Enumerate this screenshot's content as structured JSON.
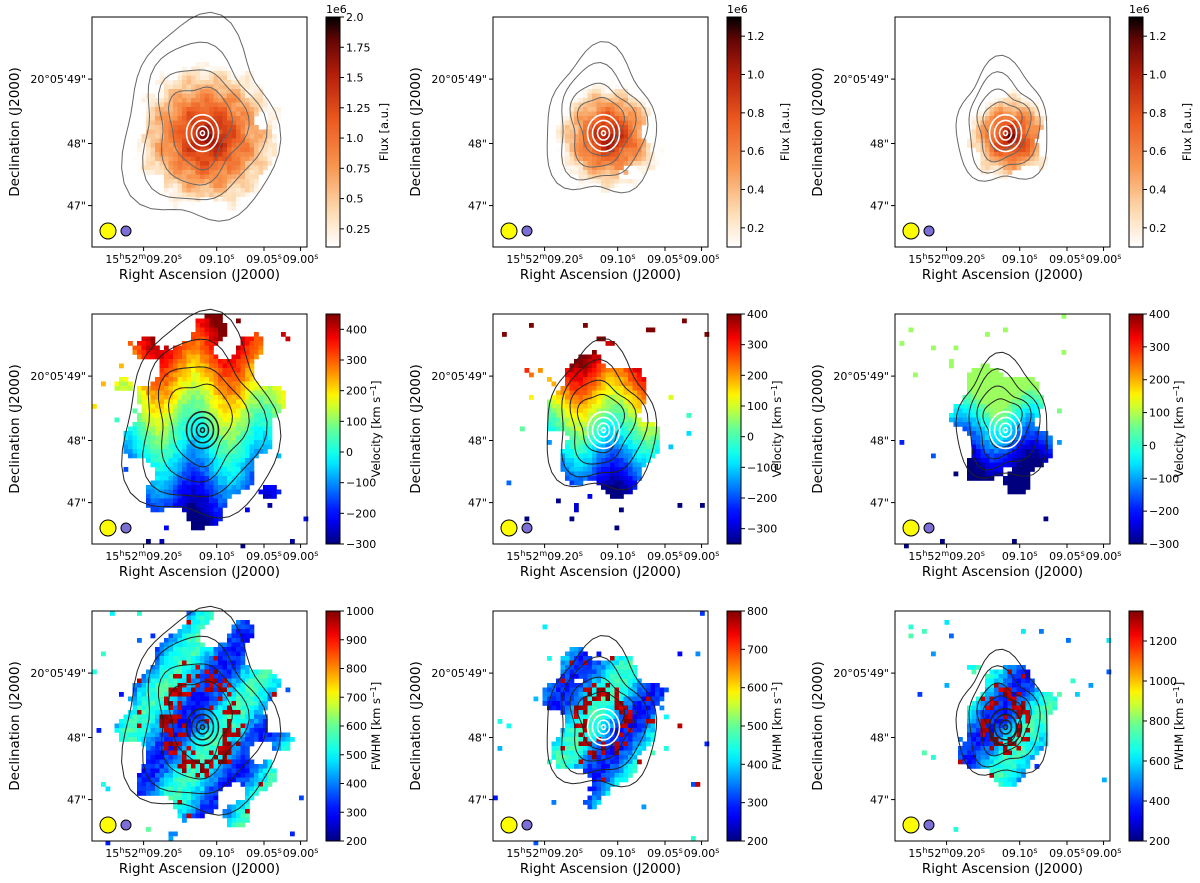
{
  "chart_data": [
    {
      "id": "flux-a",
      "type": "heatmap",
      "quantity": "flux",
      "palette": "flux",
      "title": "",
      "xlabel": "Right Ascension (J2000)",
      "ylabel": "Declination (J2000)",
      "x_ticks": [
        "15h52m09.20s",
        "09.10s",
        "09.05s",
        "09.00s"
      ],
      "y_ticks": [
        "20°05'49\"",
        "48\"",
        "47\""
      ],
      "colorbar": {
        "label": "Flux [a.u.]",
        "exponent": "1e6",
        "min": 0.1,
        "max": 2.0,
        "ticks": [
          0.25,
          0.5,
          0.75,
          1.0,
          1.25,
          1.5,
          1.75,
          2.0
        ]
      },
      "legend": {
        "position": "bottom-left",
        "entries": [
          "yellow-beam",
          "purple-beam"
        ]
      }
    },
    {
      "id": "flux-b",
      "type": "heatmap",
      "quantity": "flux",
      "palette": "flux",
      "title": "",
      "xlabel": "Right Ascension (J2000)",
      "ylabel": "Declination (J2000)",
      "x_ticks": [
        "15h52m09.20s",
        "09.10s",
        "09.05s",
        "09.00s"
      ],
      "y_ticks": [
        "20°05'49\"",
        "48\"",
        "47\""
      ],
      "colorbar": {
        "label": "Flux [a.u.]",
        "exponent": "1e6",
        "min": 0.1,
        "max": 1.3,
        "ticks": [
          0.2,
          0.4,
          0.6,
          0.8,
          1.0,
          1.2
        ]
      },
      "legend": {
        "position": "bottom-left",
        "entries": [
          "yellow-beam",
          "purple-beam"
        ]
      }
    },
    {
      "id": "flux-c",
      "type": "heatmap",
      "quantity": "flux",
      "palette": "flux",
      "title": "",
      "xlabel": "Right Ascension (J2000)",
      "ylabel": "Declination (J2000)",
      "x_ticks": [
        "15h52m09.20s",
        "09.10s",
        "09.05s",
        "09.00s"
      ],
      "y_ticks": [
        "20°05'49\"",
        "48\"",
        "47\""
      ],
      "colorbar": {
        "label": "Flux [a.u.]",
        "exponent": "1e6",
        "min": 0.1,
        "max": 1.3,
        "ticks": [
          0.2,
          0.4,
          0.6,
          0.8,
          1.0,
          1.2
        ]
      },
      "legend": {
        "position": "bottom-left",
        "entries": [
          "yellow-beam",
          "purple-beam"
        ]
      }
    },
    {
      "id": "vel-a",
      "type": "heatmap",
      "quantity": "velocity",
      "palette": "jet",
      "title": "",
      "xlabel": "Right Ascension (J2000)",
      "ylabel": "Declination (J2000)",
      "x_ticks": [
        "15h52m09.20s",
        "09.10s",
        "09.05s",
        "09.00s"
      ],
      "y_ticks": [
        "20°05'49\"",
        "48\"",
        "47\""
      ],
      "colorbar": {
        "label": "Velocity [km s",
        "label_sup": "−1",
        "label_end": "]",
        "exponent": "",
        "min": -300,
        "max": 450,
        "ticks": [
          -300,
          -200,
          -100,
          0,
          100,
          200,
          300,
          400
        ]
      },
      "legend": {
        "position": "bottom-left",
        "entries": [
          "yellow-beam",
          "purple-beam"
        ]
      }
    },
    {
      "id": "vel-b",
      "type": "heatmap",
      "quantity": "velocity",
      "palette": "jet",
      "title": "",
      "xlabel": "Right Ascension (J2000)",
      "ylabel": "Declination (J2000)",
      "x_ticks": [
        "15h52m09.20s",
        "09.10s",
        "09.05s",
        "09.00s"
      ],
      "y_ticks": [
        "20°05'49\"",
        "48\"",
        "47\""
      ],
      "colorbar": {
        "label": "Velocity [km s",
        "label_sup": "−1",
        "label_end": "]",
        "exponent": "",
        "min": -350,
        "max": 400,
        "ticks": [
          -300,
          -200,
          -100,
          0,
          100,
          200,
          300,
          400
        ]
      },
      "legend": {
        "position": "bottom-left",
        "entries": [
          "yellow-beam",
          "purple-beam"
        ]
      }
    },
    {
      "id": "vel-c",
      "type": "heatmap",
      "quantity": "velocity",
      "palette": "jet",
      "title": "",
      "xlabel": "Right Ascension (J2000)",
      "ylabel": "Declination (J2000)",
      "x_ticks": [
        "15h52m09.20s",
        "09.10s",
        "09.05s",
        "09.00s"
      ],
      "y_ticks": [
        "20°05'49\"",
        "48\"",
        "47\""
      ],
      "colorbar": {
        "label": "Velocity [km s",
        "label_sup": "−1",
        "label_end": "]",
        "exponent": "",
        "min": -300,
        "max": 400,
        "ticks": [
          -300,
          -200,
          -100,
          0,
          100,
          200,
          300,
          400
        ]
      },
      "legend": {
        "position": "bottom-left",
        "entries": [
          "yellow-beam",
          "purple-beam"
        ]
      }
    },
    {
      "id": "fwhm-a",
      "type": "heatmap",
      "quantity": "fwhm",
      "palette": "jet",
      "title": "",
      "xlabel": "Right Ascension (J2000)",
      "ylabel": "Declination (J2000)",
      "x_ticks": [
        "15h52m09.20s",
        "09.10s",
        "09.05s",
        "09.00s"
      ],
      "y_ticks": [
        "20°05'49\"",
        "48\"",
        "47\""
      ],
      "colorbar": {
        "label": "FWHM [km s",
        "label_sup": "−1",
        "label_end": "]",
        "exponent": "",
        "min": 200,
        "max": 1000,
        "ticks": [
          200,
          300,
          400,
          500,
          600,
          700,
          800,
          900,
          1000
        ]
      },
      "legend": {
        "position": "bottom-left",
        "entries": [
          "yellow-beam",
          "purple-beam"
        ]
      }
    },
    {
      "id": "fwhm-b",
      "type": "heatmap",
      "quantity": "fwhm",
      "palette": "jet",
      "title": "",
      "xlabel": "Right Ascension (J2000)",
      "ylabel": "Declination (J2000)",
      "x_ticks": [
        "15h52m09.20s",
        "09.10s",
        "09.05s",
        "09.00s"
      ],
      "y_ticks": [
        "20°05'49\"",
        "48\"",
        "47\""
      ],
      "colorbar": {
        "label": "FWHM [km s",
        "label_sup": "−1",
        "label_end": "]",
        "exponent": "",
        "min": 200,
        "max": 800,
        "ticks": [
          200,
          300,
          400,
          500,
          600,
          700,
          800
        ]
      },
      "legend": {
        "position": "bottom-left",
        "entries": [
          "yellow-beam",
          "purple-beam"
        ]
      }
    },
    {
      "id": "fwhm-c",
      "type": "heatmap",
      "quantity": "fwhm",
      "palette": "jet",
      "title": "",
      "xlabel": "Right Ascension (J2000)",
      "ylabel": "Declination (J2000)",
      "x_ticks": [
        "15h52m09.20s",
        "09.10s",
        "09.05s",
        "09.00s"
      ],
      "y_ticks": [
        "20°05'49\"",
        "48\"",
        "47\""
      ],
      "colorbar": {
        "label": "FWHM [km s",
        "label_sup": "−1",
        "label_end": "]",
        "exponent": "",
        "min": 200,
        "max": 1350,
        "ticks": [
          200,
          400,
          600,
          800,
          1000,
          1200
        ]
      },
      "legend": {
        "position": "bottom-left",
        "entries": [
          "yellow-beam",
          "purple-beam"
        ]
      }
    }
  ],
  "colors": {
    "beam_yellow": "#ffff00",
    "beam_purple": "#7b6fd6",
    "contour_dark": "#222222",
    "contour_grey": "#666666",
    "contour_white": "#ffffff"
  }
}
